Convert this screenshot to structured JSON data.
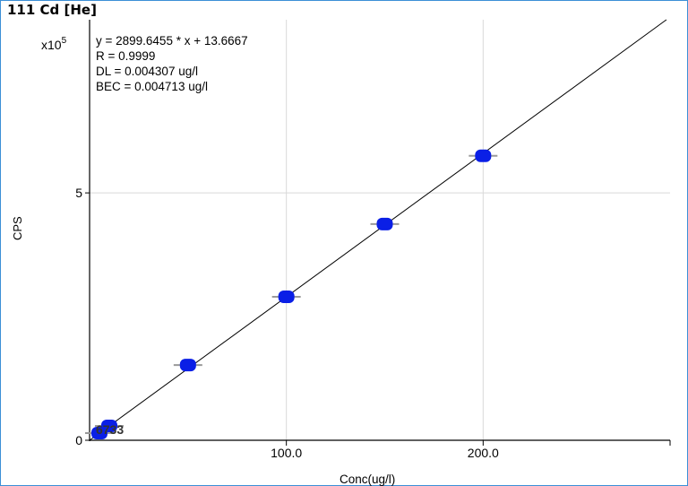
{
  "chart_data": {
    "type": "scatter",
    "title": "111 Cd [He]",
    "xlabel": "Conc(ug/l)",
    "ylabel": "CPS",
    "y_multiplier_label": "x10",
    "y_multiplier_exp": "5",
    "xlim": [
      0,
      295
    ],
    "ylim": [
      0,
      8.5
    ],
    "y_unit_scale": 100000,
    "x_ticks": [
      {
        "value": 100,
        "label": "100.0"
      },
      {
        "value": 200,
        "label": "200.0"
      }
    ],
    "y_ticks": [
      {
        "value": 0,
        "label": "0"
      },
      {
        "value": 5,
        "label": "5"
      }
    ],
    "grid": true,
    "equation": {
      "line1": "y = 2899.6455 * x  + 13.6667",
      "line2": "R =  0.9999",
      "line3": "DL = 0.004307 ug/l",
      "line4": "BEC = 0.004713 ug/l"
    },
    "fit": {
      "slope": 2899.6455,
      "intercept": 13.6667
    },
    "series": [
      {
        "points": [
          {
            "x": 5,
            "y": 14500
          },
          {
            "x": 10,
            "y": 29000
          },
          {
            "x": 50,
            "y": 152000
          },
          {
            "x": 100,
            "y": 290000
          },
          {
            "x": 150,
            "y": 437000
          },
          {
            "x": 200,
            "y": 575000
          }
        ]
      }
    ],
    "point_annotation": "6733",
    "colors": {
      "point": "#0a1fe6",
      "fit_line": "#000000",
      "mean_mark": "#9a9a9a",
      "grid": "#d9d9d9",
      "frame": "#3c8fd6"
    }
  }
}
